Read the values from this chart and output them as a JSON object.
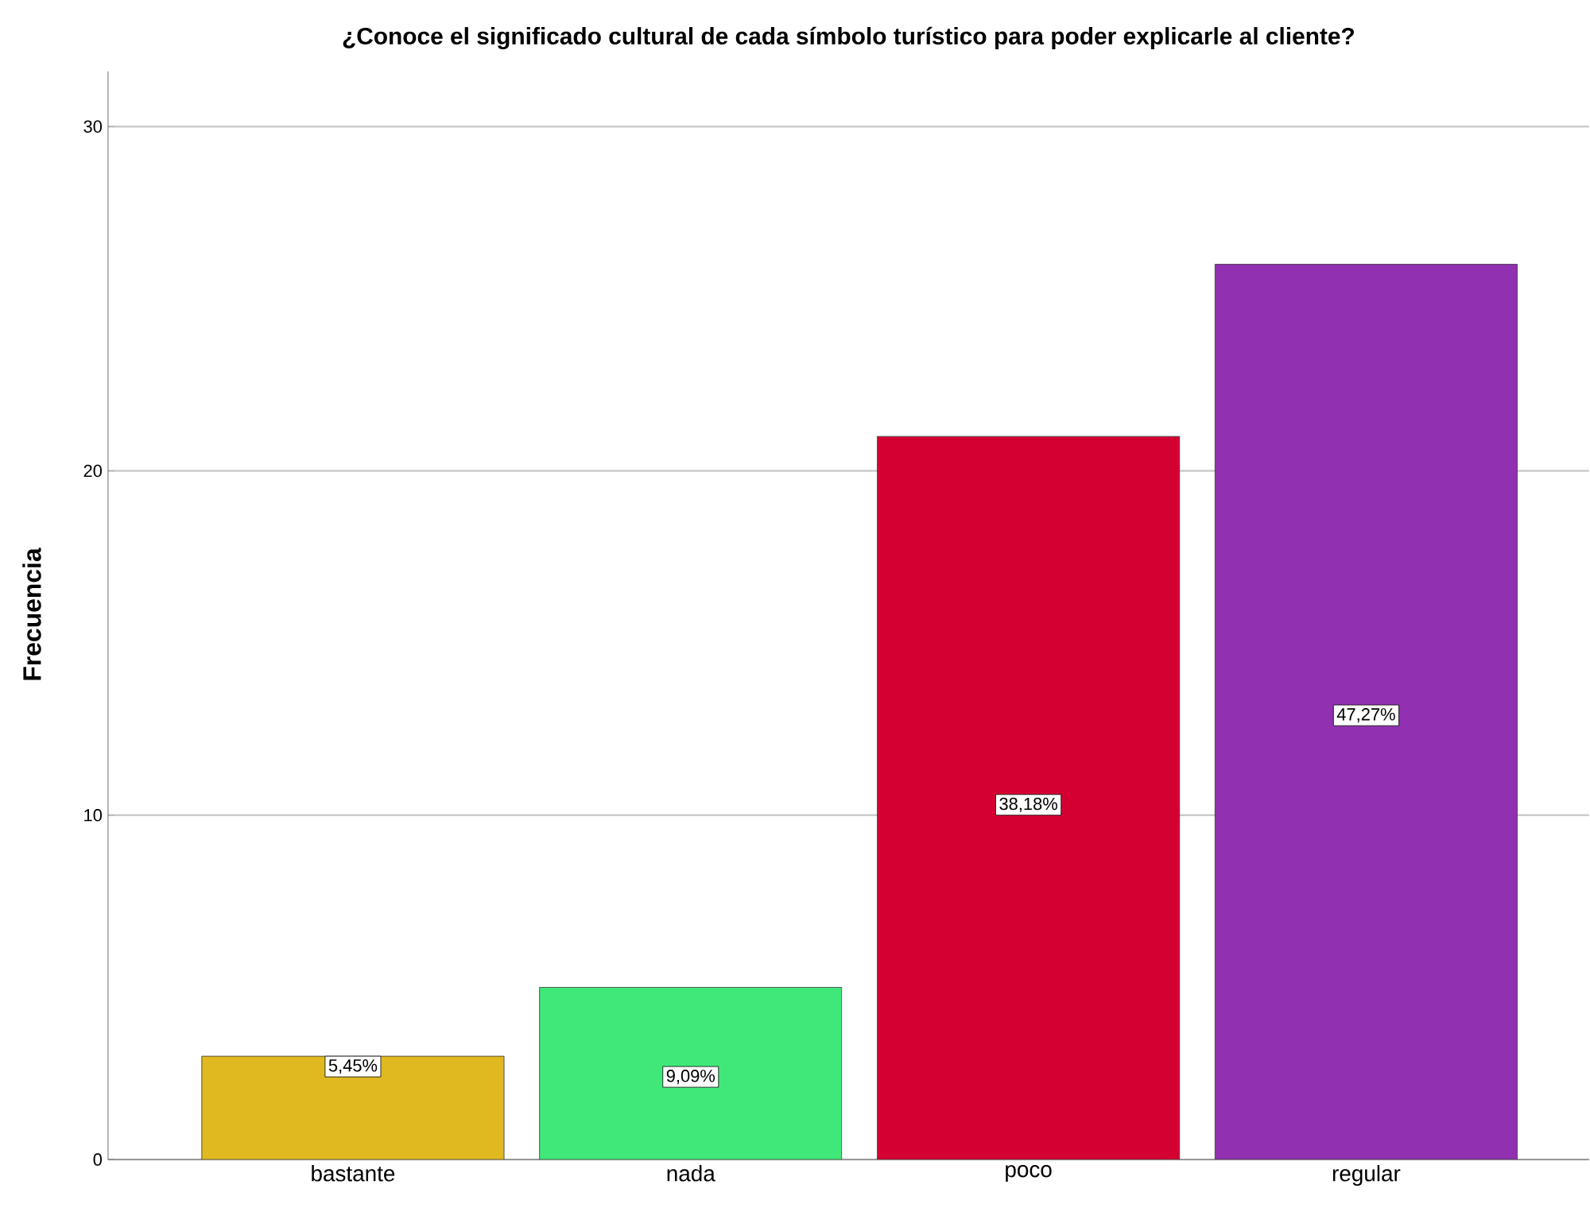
{
  "chart_data": {
    "type": "bar",
    "title": "¿Conoce el significado cultural de cada símbolo turístico para poder explicarle al cliente?",
    "ylabel": "Frecuencia",
    "categories": [
      "bastante",
      "nada",
      "poco",
      "regular"
    ],
    "values": [
      3,
      5,
      21,
      26
    ],
    "colors": [
      "#e0b820",
      "#40e87a",
      "#d50032",
      "#9130b0"
    ],
    "annotations": [
      {
        "text": "5,45%",
        "x": "bastante",
        "y": 2.7
      },
      {
        "text": "9,09%",
        "x": "nada",
        "y": 2.4
      },
      {
        "text": "38,18%",
        "x": "poco",
        "y": 10.3
      },
      {
        "text": "47,27%",
        "x": "regular",
        "y": 12.9
      }
    ],
    "ylim": [
      0,
      31.6
    ],
    "yticks": [
      0,
      10,
      20,
      30
    ],
    "grid": "y"
  }
}
